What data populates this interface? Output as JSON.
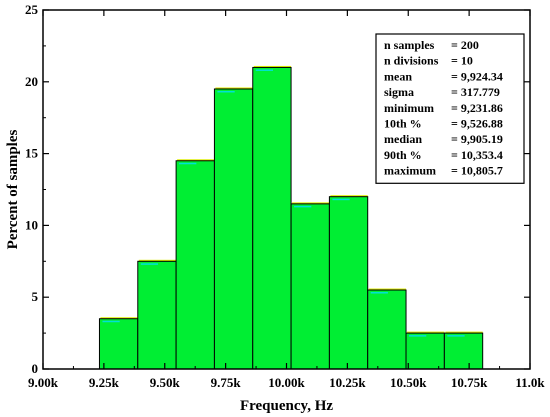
{
  "chart_data": {
    "type": "bar",
    "xlabel": "Frequency, Hz",
    "ylabel": "Percent of samples",
    "xlim": [
      9000,
      11000
    ],
    "ylim": [
      0,
      25
    ],
    "x_ticks": [
      {
        "value": 9000,
        "label": "9.00k"
      },
      {
        "value": 9250,
        "label": "9.25k"
      },
      {
        "value": 9500,
        "label": "9.50k"
      },
      {
        "value": 9750,
        "label": "9.75k"
      },
      {
        "value": 10000,
        "label": "10.00k"
      },
      {
        "value": 10250,
        "label": "10.25k"
      },
      {
        "value": 10500,
        "label": "10.50k"
      },
      {
        "value": 10750,
        "label": "10.75k"
      },
      {
        "value": 11000,
        "label": "11.0k"
      }
    ],
    "y_ticks": [
      {
        "value": 0,
        "label": "0"
      },
      {
        "value": 5,
        "label": "5"
      },
      {
        "value": 10,
        "label": "10"
      },
      {
        "value": 15,
        "label": "15"
      },
      {
        "value": 20,
        "label": "20"
      },
      {
        "value": 25,
        "label": "25"
      }
    ],
    "bins": [
      {
        "start": 9231.86,
        "end": 9389.25,
        "value": 3.5
      },
      {
        "start": 9389.25,
        "end": 9546.63,
        "value": 7.5
      },
      {
        "start": 9546.63,
        "end": 9704.02,
        "value": 14.5
      },
      {
        "start": 9704.02,
        "end": 9861.4,
        "value": 19.5
      },
      {
        "start": 9861.4,
        "end": 10018.8,
        "value": 21.0
      },
      {
        "start": 10018.8,
        "end": 10176.2,
        "value": 11.5
      },
      {
        "start": 10176.2,
        "end": 10333.5,
        "value": 12.0
      },
      {
        "start": 10333.5,
        "end": 10490.9,
        "value": 5.5
      },
      {
        "start": 10490.9,
        "end": 10648.3,
        "value": 2.5
      },
      {
        "start": 10648.3,
        "end": 10805.7,
        "value": 2.5
      }
    ],
    "colors": {
      "bar_fill": "#00ee33",
      "bar_stroke": "#000000",
      "highlight": "#00ddff",
      "edge": "#ddee00"
    },
    "grid": false,
    "stats": [
      {
        "label": "n samples",
        "value": "= 200"
      },
      {
        "label": "n divisions",
        "value": "= 10"
      },
      {
        "label": "mean",
        "value": "= 9,924.34"
      },
      {
        "label": "sigma",
        "value": "= 317.779"
      },
      {
        "label": "minimum",
        "value": "= 9,231.86"
      },
      {
        "label": "10th %",
        "value": "= 9,526.88"
      },
      {
        "label": "median",
        "value": "= 9,905.19"
      },
      {
        "label": "90th %",
        "value": "= 10,353.4"
      },
      {
        "label": "maximum",
        "value": "= 10,805.7"
      }
    ],
    "stats_placement": "top-right"
  }
}
